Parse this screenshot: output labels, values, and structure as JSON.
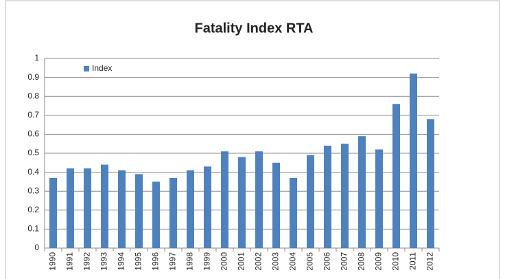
{
  "chart_data": {
    "type": "bar",
    "title": "Fatality Index RTA",
    "categories": [
      "1990",
      "1991",
      "1992",
      "1993",
      "1994",
      "1995",
      "1996",
      "1997",
      "1998",
      "1999",
      "2000",
      "2001",
      "2002",
      "2003",
      "2004",
      "2005",
      "2006",
      "2007",
      "2008",
      "2009",
      "2010",
      "2011",
      "2012"
    ],
    "series": [
      {
        "name": "Index",
        "color": "#4f81bd",
        "values": [
          0.37,
          0.42,
          0.42,
          0.44,
          0.41,
          0.39,
          0.35,
          0.37,
          0.41,
          0.43,
          0.51,
          0.48,
          0.51,
          0.45,
          0.37,
          0.49,
          0.54,
          0.55,
          0.59,
          0.52,
          0.76,
          0.92,
          0.68
        ]
      }
    ],
    "ylim": [
      0,
      1
    ],
    "yticks": [
      0,
      0.1,
      0.2,
      0.3,
      0.4,
      0.5,
      0.6,
      0.7,
      0.8,
      0.9,
      1
    ],
    "grid": true,
    "legend": "top-left"
  }
}
